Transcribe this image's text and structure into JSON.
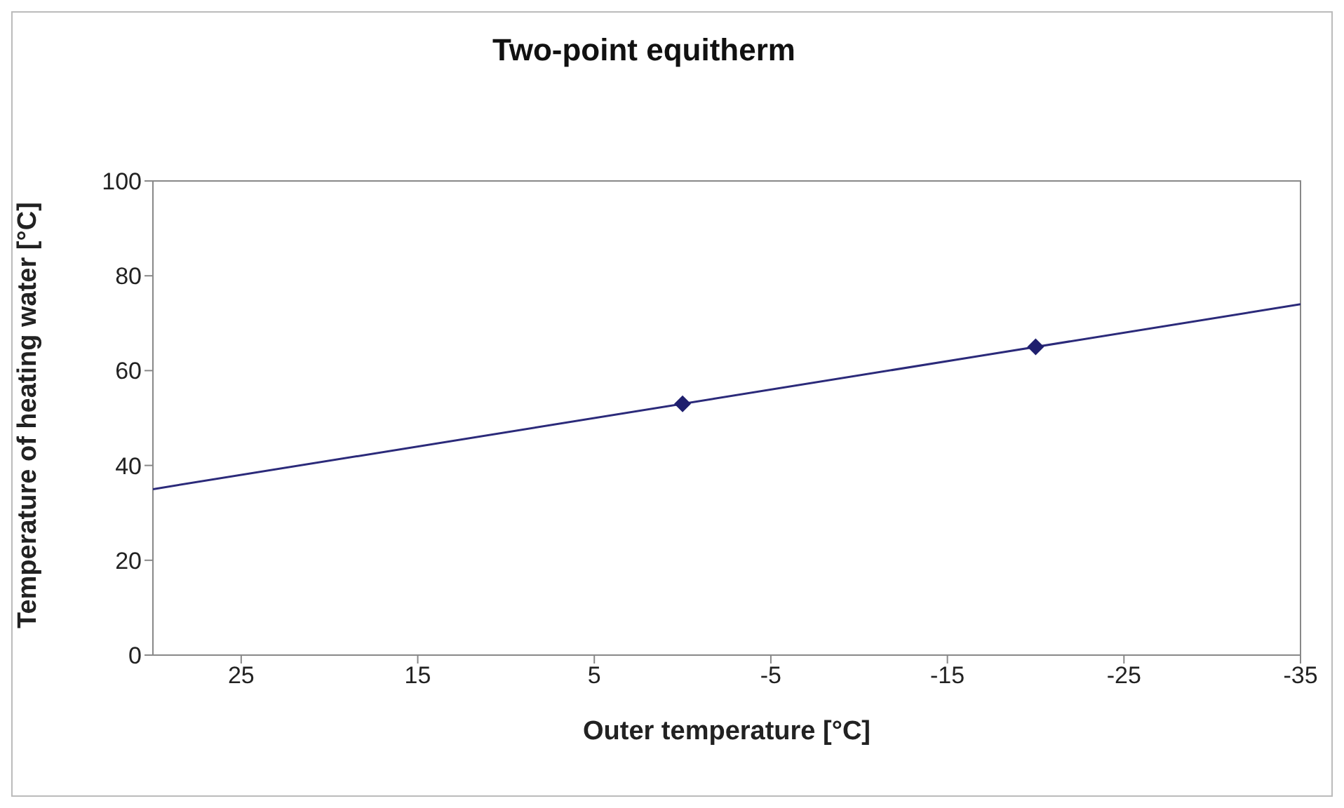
{
  "chart_data": {
    "type": "line",
    "title": "Two-point equitherm",
    "xlabel": "Outer temperature [°C]",
    "ylabel": "Temperature of heating water [°C]",
    "series": [
      {
        "color": "#2b2a7a",
        "x": [
          30,
          -35
        ],
        "values": [
          35,
          74
        ],
        "marker": "none"
      },
      {
        "type": "scatter",
        "color": "#1f1f6e",
        "x": [
          0,
          -20
        ],
        "values": [
          53,
          65
        ],
        "marker": "diamond"
      }
    ],
    "xlim": [
      30,
      -35
    ],
    "xticks": [
      25,
      15,
      5,
      -5,
      -15,
      -25,
      -35
    ],
    "ylim": [
      0,
      100
    ],
    "yticks": [
      0,
      20,
      40,
      60,
      80,
      100
    ],
    "grid": false,
    "legend": false
  }
}
